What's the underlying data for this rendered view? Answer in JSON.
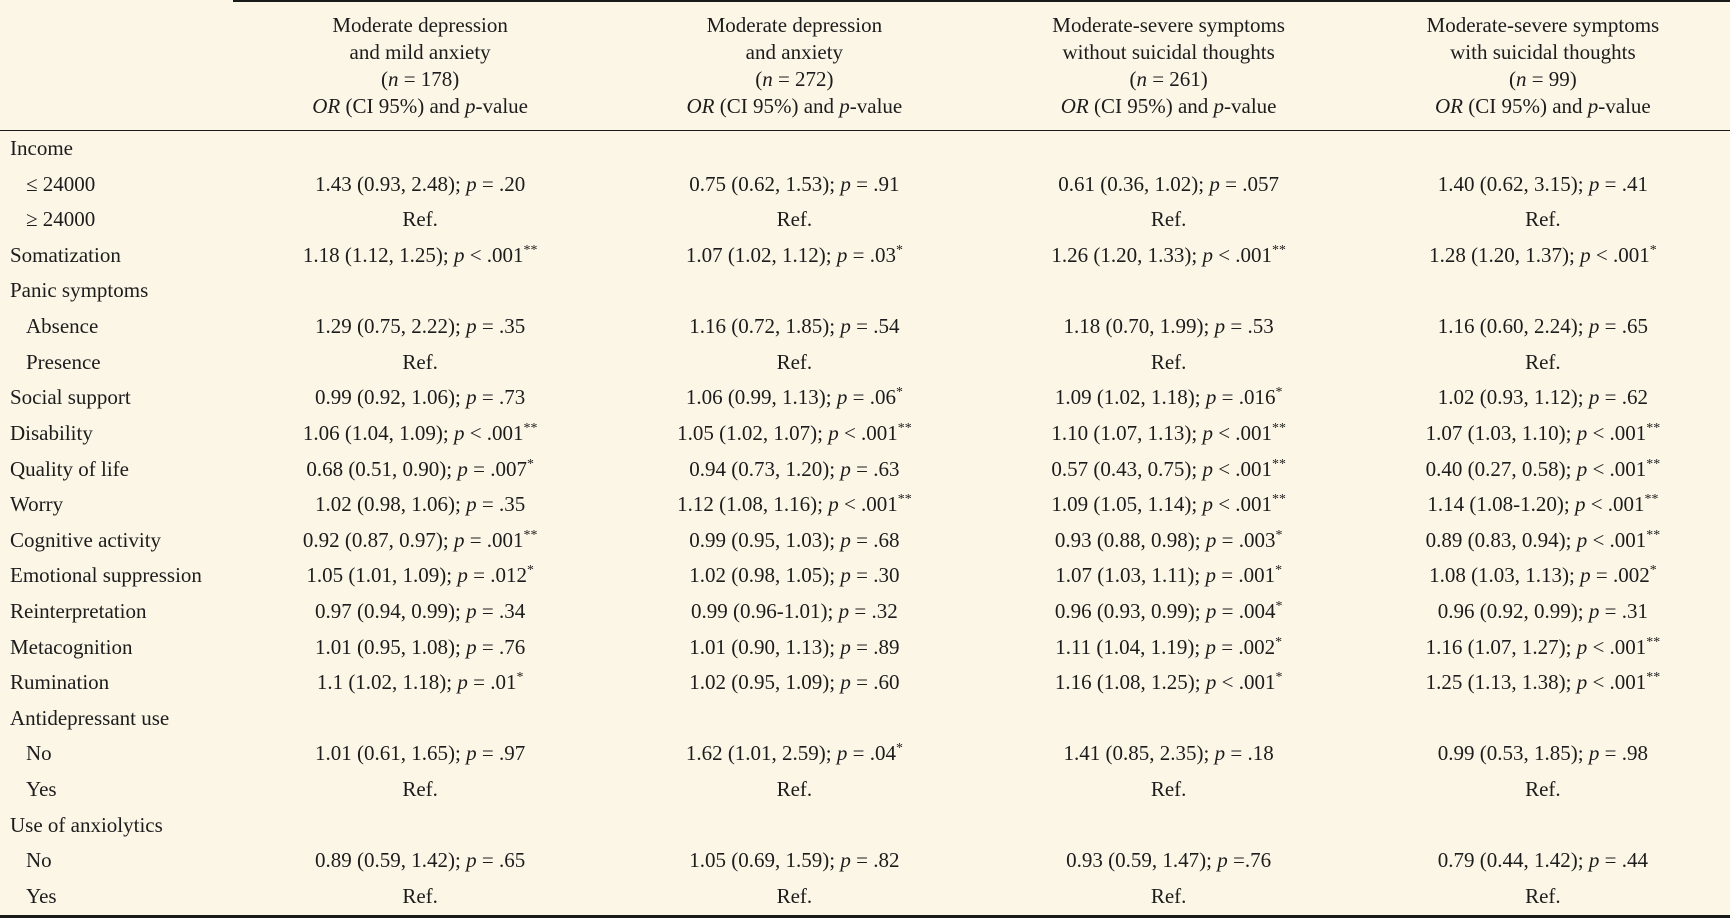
{
  "page": {
    "background_color": "#fcf6e7",
    "text_color": "#1c1c1c"
  },
  "table": {
    "columns": [
      {
        "lines": [
          "Moderate depression",
          "and mild anxiety",
          "(n = 178)",
          "OR (CI 95%) and p-value"
        ]
      },
      {
        "lines": [
          "Moderate depression",
          "and anxiety",
          "(n = 272)",
          "OR (CI 95%) and p-value"
        ]
      },
      {
        "lines": [
          "Moderate-severe symptoms",
          "without suicidal thoughts",
          "(n = 261)",
          "OR (CI 95%) and p-value"
        ]
      },
      {
        "lines": [
          "Moderate-severe symptoms",
          "with suicidal thoughts",
          "(n = 99)",
          "OR (CI 95%) and p-value"
        ]
      }
    ],
    "rows": [
      {
        "label": "Income",
        "section": true,
        "cells": []
      },
      {
        "label": "≤ 24000",
        "indent": true,
        "cells": [
          "1.43 (0.93, 2.48); p = .20",
          "0.75 (0.62, 1.53); p = .91",
          "0.61 (0.36, 1.02); p = .057",
          "1.40 (0.62, 3.15); p = .41"
        ]
      },
      {
        "label": "≥ 24000",
        "indent": true,
        "cells": [
          "Ref.",
          "Ref.",
          "Ref.",
          "Ref."
        ]
      },
      {
        "label": "Somatization",
        "cells": [
          "1.18 (1.12, 1.25); p < .001**",
          "1.07 (1.02, 1.12); p = .03*",
          "1.26 (1.20, 1.33); p < .001**",
          "1.28 (1.20, 1.37); p < .001*"
        ]
      },
      {
        "label": "Panic symptoms",
        "section": true,
        "cells": []
      },
      {
        "label": "Absence",
        "indent": true,
        "cells": [
          "1.29 (0.75, 2.22); p = .35",
          "1.16 (0.72, 1.85); p = .54",
          "1.18 (0.70, 1.99); p = .53",
          "1.16 (0.60, 2.24); p = .65"
        ]
      },
      {
        "label": "Presence",
        "indent": true,
        "cells": [
          "Ref.",
          "Ref.",
          "Ref.",
          "Ref."
        ]
      },
      {
        "label": "Social support",
        "cells": [
          "0.99 (0.92, 1.06); p = .73",
          "1.06 (0.99, 1.13); p = .06*",
          "1.09 (1.02, 1.18); p = .016*",
          "1.02 (0.93, 1.12); p = .62"
        ]
      },
      {
        "label": "Disability",
        "cells": [
          "1.06 (1.04, 1.09); p < .001**",
          "1.05 (1.02, 1.07); p < .001**",
          "1.10 (1.07, 1.13); p < .001**",
          "1.07 (1.03, 1.10); p < .001**"
        ]
      },
      {
        "label": "Quality of life",
        "cells": [
          "0.68 (0.51, 0.90); p = .007*",
          "0.94 (0.73, 1.20); p = .63",
          "0.57 (0.43, 0.75); p < .001**",
          "0.40 (0.27, 0.58); p < .001**"
        ]
      },
      {
        "label": "Worry",
        "cells": [
          "1.02 (0.98, 1.06); p = .35",
          "1.12 (1.08, 1.16); p < .001**",
          "1.09 (1.05, 1.14); p < .001**",
          "1.14 (1.08-1.20); p < .001**"
        ]
      },
      {
        "label": "Cognitive activity",
        "cells": [
          "0.92 (0.87, 0.97); p = .001**",
          "0.99 (0.95, 1.03); p = .68",
          "0.93 (0.88, 0.98); p = .003*",
          "0.89 (0.83, 0.94); p < .001**"
        ]
      },
      {
        "label": "Emotional suppression",
        "cells": [
          "1.05 (1.01, 1.09); p = .012*",
          "1.02 (0.98, 1.05); p = .30",
          "1.07 (1.03, 1.11); p = .001*",
          "1.08 (1.03, 1.13); p = .002*"
        ]
      },
      {
        "label": "Reinterpretation",
        "cells": [
          "0.97 (0.94, 0.99); p = .34",
          "0.99 (0.96-1.01); p = .32",
          "0.96 (0.93, 0.99); p = .004*",
          "0.96 (0.92, 0.99); p = .31"
        ]
      },
      {
        "label": "Metacognition",
        "cells": [
          "1.01 (0.95, 1.08); p = .76",
          "1.01 (0.90, 1.13); p = .89",
          "1.11 (1.04, 1.19); p = .002*",
          "1.16 (1.07, 1.27); p < .001**"
        ]
      },
      {
        "label": "Rumination",
        "cells": [
          "1.1 (1.02, 1.18); p = .01*",
          "1.02 (0.95, 1.09); p = .60",
          "1.16 (1.08, 1.25); p < .001*",
          "1.25 (1.13, 1.38); p < .001**"
        ]
      },
      {
        "label": "Antidepressant use",
        "section": true,
        "cells": []
      },
      {
        "label": "No",
        "indent": true,
        "cells": [
          "1.01 (0.61, 1.65); p = .97",
          "1.62 (1.01, 2.59); p = .04*",
          "1.41 (0.85, 2.35); p = .18",
          "0.99 (0.53, 1.85); p = .98"
        ]
      },
      {
        "label": "Yes",
        "indent": true,
        "cells": [
          "Ref.",
          "Ref.",
          "Ref.",
          "Ref."
        ]
      },
      {
        "label": "Use of anxiolytics",
        "section": true,
        "cells": []
      },
      {
        "label": "No",
        "indent": true,
        "cells": [
          "0.89 (0.59, 1.42); p = .65",
          "1.05 (0.69, 1.59); p = .82",
          "0.93 (0.59, 1.47); p =.76",
          "0.79 (0.44, 1.42); p = .44"
        ]
      },
      {
        "label": "Yes",
        "indent": true,
        "cells": [
          "Ref.",
          "Ref.",
          "Ref.",
          "Ref."
        ]
      }
    ]
  }
}
